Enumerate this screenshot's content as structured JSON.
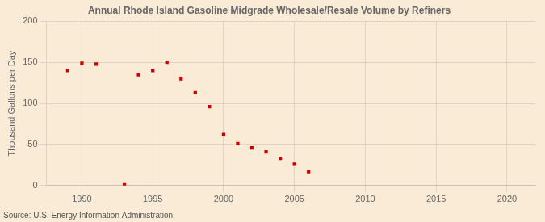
{
  "chart_data": {
    "type": "scatter",
    "title": "Annual Rhode Island Gasoline Midgrade Wholesale/Resale Volume by Refiners",
    "y_label": "Thousand Gallons per Day",
    "annotations": [
      "Source: U.S. Energy Information Administration"
    ],
    "x": [
      1989,
      1990,
      1991,
      1993,
      1994,
      1995,
      1996,
      1997,
      1998,
      1999,
      2000,
      2001,
      2002,
      2003,
      2004,
      2005,
      2006
    ],
    "values": [
      140,
      149,
      148,
      1,
      135,
      140,
      150,
      130,
      113,
      96,
      62,
      51,
      46,
      41,
      33,
      26,
      17
    ],
    "color": "#cc0000",
    "marker": "square",
    "xlim": [
      1987.5,
      2022
    ],
    "ylim": [
      0,
      200
    ],
    "xticks": [
      1990,
      1995,
      2000,
      2005,
      2010,
      2015,
      2020
    ],
    "yticks": [
      0,
      50,
      100,
      150,
      200
    ],
    "grid": true
  }
}
